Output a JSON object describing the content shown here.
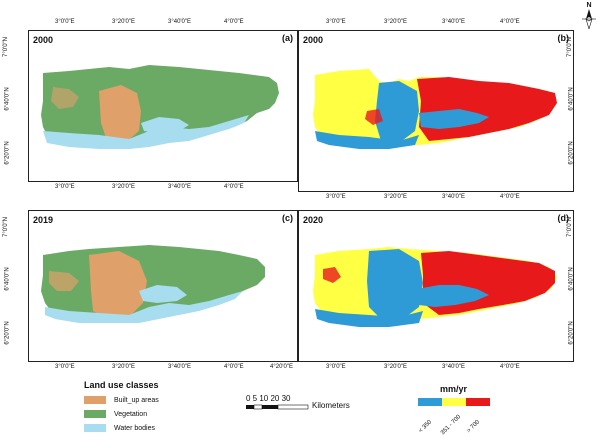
{
  "panels": [
    {
      "year": "2000",
      "id": "(a)",
      "kind": "landuse"
    },
    {
      "year": "2000",
      "id": "(b)",
      "kind": "recharge"
    },
    {
      "year": "2019",
      "id": "(c)",
      "kind": "landuse"
    },
    {
      "year": "2020",
      "id": "(d)",
      "kind": "recharge"
    }
  ],
  "ticks": {
    "top_left": [
      "3°0'0\"E",
      "3°20'0\"E",
      "3°40'0\"E",
      "4°0'0\"E"
    ],
    "bottom_left": [
      "3°0'0\"E",
      "3°20'0\"E",
      "3°40'0\"E",
      "4°0'0\"E"
    ],
    "top_right": [
      "3°0'0\"E",
      "3°20'0\"E",
      "3°40'0\"E",
      "4°0'0\"E"
    ],
    "bottom_right": [
      "3°0'0\"E",
      "3°20'0\"E",
      "3°40'0\"E",
      "4°0'0\"E"
    ],
    "bottom_last": [
      "3°0'0\"E",
      "3°20'0\"E",
      "3°40'0\"E",
      "4°0'0\"E",
      "4°20'0\"E"
    ],
    "lat_left": [
      "7°0'0\"N",
      "6°40'0\"N",
      "6°20'0\"N"
    ],
    "lat_right": [
      "7°0'0\"N",
      "6°40'0\"N",
      "6°20'0\"N"
    ]
  },
  "legend": {
    "title": "Land use classes",
    "items": [
      {
        "label": "Built_up areas",
        "color": "#e0a06a"
      },
      {
        "label": "Vegetation",
        "color": "#6aaa64"
      },
      {
        "label": "Water bodies",
        "color": "#a8dcef"
      }
    ]
  },
  "scale": {
    "numbers": "0 5 10   20   30",
    "unit": "Kilometers"
  },
  "recharge_legend": {
    "title": "mm/yr",
    "items": [
      {
        "label": "< 350",
        "color": "#2e9bd6"
      },
      {
        "label": "351 - 700",
        "color": "#ffff44"
      },
      {
        "label": "> 700",
        "color": "#e8191b"
      }
    ]
  },
  "north": "N"
}
